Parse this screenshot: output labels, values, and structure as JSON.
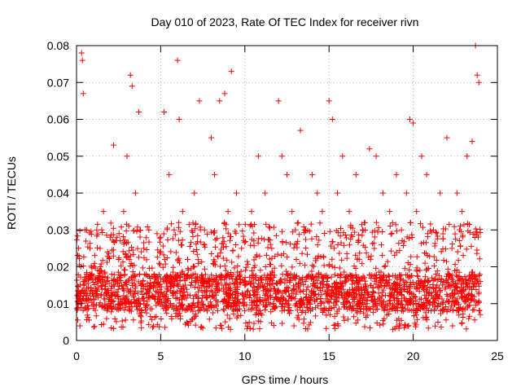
{
  "chart_data": {
    "type": "scatter",
    "title": "Day 010 of 2023, Rate Of TEC Index for receiver rivn",
    "xlabel": "GPS time / hours",
    "ylabel": "ROTI / TECUs",
    "xlim": [
      0,
      25
    ],
    "ylim": [
      0,
      0.08
    ],
    "x_ticks": [
      0,
      5,
      10,
      15,
      20,
      25
    ],
    "x_tick_labels": [
      "0",
      "5",
      "10",
      "15",
      "20",
      "25"
    ],
    "y_ticks": [
      0,
      0.01,
      0.02,
      0.03,
      0.04,
      0.05,
      0.06,
      0.07,
      0.08
    ],
    "y_tick_labels": [
      "0",
      "0.01",
      "0.02",
      "0.03",
      "0.04",
      "0.05",
      "0.06",
      "0.07",
      "0.08"
    ],
    "grid": true,
    "marker": "+",
    "color": "#ff0000",
    "series": [
      {
        "x": [
          0.1,
          0.25,
          0.3,
          0.35,
          0.4,
          0.5,
          0.6,
          0.8,
          1.0,
          1.2,
          1.4,
          1.6,
          1.8,
          2.0,
          2.2,
          2.5,
          2.8,
          3.0,
          3.2,
          3.3,
          3.5,
          3.7,
          4.0,
          4.3,
          4.6,
          5.0,
          5.2,
          5.5,
          5.8,
          6.0,
          6.1,
          6.3,
          6.6,
          7.0,
          7.3,
          7.6,
          8.0,
          8.2,
          8.5,
          8.8,
          9.0,
          9.2,
          9.5,
          9.8,
          10.0,
          10.4,
          10.8,
          11.2,
          11.6,
          12.0,
          12.2,
          12.5,
          12.8,
          13.0,
          13.3,
          13.6,
          14.0,
          14.3,
          14.6,
          15.0,
          15.2,
          15.5,
          15.8,
          16.2,
          16.6,
          17.0,
          17.4,
          17.8,
          18.2,
          18.6,
          19.0,
          19.3,
          19.6,
          19.8,
          20.0,
          20.2,
          20.5,
          20.8,
          21.2,
          21.6,
          22.0,
          22.3,
          22.6,
          22.9,
          23.2,
          23.5,
          23.7,
          23.8,
          23.9
        ],
        "y": [
          0.012,
          0.02,
          0.078,
          0.076,
          0.067,
          0.03,
          0.018,
          0.025,
          0.012,
          0.03,
          0.02,
          0.035,
          0.016,
          0.028,
          0.053,
          0.022,
          0.035,
          0.05,
          0.072,
          0.069,
          0.04,
          0.062,
          0.025,
          0.03,
          0.018,
          0.028,
          0.062,
          0.045,
          0.03,
          0.076,
          0.06,
          0.035,
          0.022,
          0.04,
          0.065,
          0.03,
          0.055,
          0.045,
          0.065,
          0.067,
          0.035,
          0.073,
          0.04,
          0.025,
          0.015,
          0.035,
          0.05,
          0.04,
          0.025,
          0.065,
          0.05,
          0.045,
          0.035,
          0.03,
          0.057,
          0.03,
          0.045,
          0.04,
          0.035,
          0.065,
          0.06,
          0.04,
          0.05,
          0.035,
          0.045,
          0.03,
          0.052,
          0.05,
          0.04,
          0.035,
          0.045,
          0.03,
          0.04,
          0.06,
          0.059,
          0.035,
          0.05,
          0.045,
          0.03,
          0.04,
          0.055,
          0.025,
          0.04,
          0.035,
          0.05,
          0.054,
          0.08,
          0.072,
          0.07
        ]
      }
    ],
    "band": {
      "x_start": 0,
      "x_end": 24,
      "core_low": 0.008,
      "core_high": 0.018,
      "spread_high": 0.032
    }
  }
}
